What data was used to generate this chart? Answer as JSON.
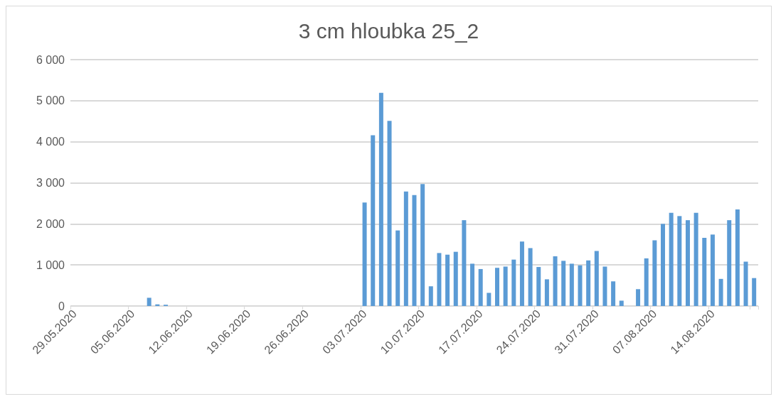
{
  "chart_data": {
    "type": "bar",
    "title": "3 cm hloubka 25_2",
    "categories": [
      "29.05.2020",
      null,
      null,
      null,
      null,
      null,
      null,
      "05.06.2020",
      null,
      null,
      null,
      null,
      null,
      null,
      "12.06.2020",
      null,
      null,
      null,
      null,
      null,
      null,
      "19.06.2020",
      null,
      null,
      null,
      null,
      null,
      null,
      "26.06.2020",
      null,
      null,
      null,
      null,
      null,
      null,
      "03.07.2020",
      null,
      null,
      null,
      null,
      null,
      null,
      "10.07.2020",
      null,
      null,
      null,
      null,
      null,
      null,
      "17.07.2020",
      null,
      null,
      null,
      null,
      null,
      null,
      "24.07.2020",
      null,
      null,
      null,
      null,
      null,
      null,
      "31.07.2020",
      null,
      null,
      null,
      null,
      null,
      null,
      "07.08.2020",
      null,
      null,
      null,
      null,
      null,
      null,
      "14.08.2020",
      null,
      null,
      null,
      null,
      null
    ],
    "values": [
      0,
      0,
      0,
      0,
      0,
      0,
      0,
      0,
      0,
      200,
      40,
      30,
      0,
      0,
      0,
      0,
      0,
      0,
      0,
      0,
      0,
      0,
      0,
      0,
      0,
      0,
      0,
      0,
      0,
      0,
      0,
      0,
      0,
      0,
      0,
      2520,
      4160,
      5190,
      4510,
      1840,
      2790,
      2700,
      2970,
      480,
      1290,
      1250,
      1320,
      2090,
      1030,
      900,
      320,
      930,
      960,
      1130,
      1570,
      1410,
      950,
      650,
      1210,
      1100,
      1030,
      990,
      1110,
      1340,
      960,
      600,
      130,
      0,
      410,
      1160,
      1600,
      2000,
      2270,
      2190,
      2090,
      2270,
      1660,
      1740,
      660,
      2090,
      2350,
      1080,
      680
    ],
    "color": "#5b9bd5",
    "ylim": [
      0,
      6000
    ],
    "yticks": [
      {
        "value": 0,
        "label": "0"
      },
      {
        "value": 1000,
        "label": "1 000"
      },
      {
        "value": 2000,
        "label": "2 000"
      },
      {
        "value": 3000,
        "label": "3 000"
      },
      {
        "value": 4000,
        "label": "4 000"
      },
      {
        "value": 5000,
        "label": "5 000"
      },
      {
        "value": 6000,
        "label": "6 000"
      }
    ],
    "grid": "y"
  }
}
